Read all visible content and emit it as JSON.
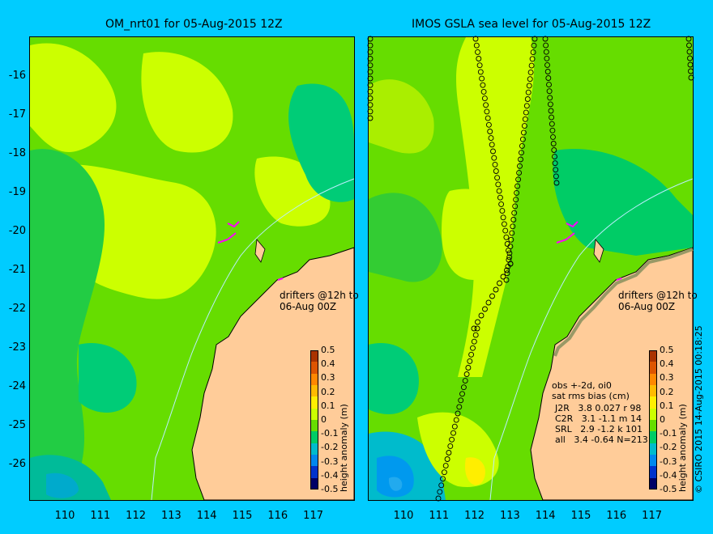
{
  "left_panel": {
    "title": "OM_nrt01 for 05-Aug-2015 12Z",
    "drifters_note": "drifters @12h to\n06-Aug 00Z"
  },
  "right_panel": {
    "title": "IMOS GSLA sea level  for 05-Aug-2015 12Z",
    "drifters_note": "drifters @12h to\n06-Aug 00Z",
    "stats_header": "obs +-2d, oi0\nsat rms bias (cm)",
    "stats_rows": [
      "J2R   3.8 0.027 r 98",
      "C2R   3.1 -1.1 m 14",
      "SRL   2.9 -1.2 k 101",
      "all   3.4 -0.64 N=213"
    ]
  },
  "y_ticks": [
    "-16",
    "-17",
    "-18",
    "-19",
    "-20",
    "-21",
    "-22",
    "-23",
    "-24",
    "-25",
    "-26"
  ],
  "x_ticks": [
    "110",
    "111",
    "112",
    "113",
    "114",
    "115",
    "116",
    "117"
  ],
  "colorbar": {
    "label": "height anomaly (m)",
    "ticks": [
      "0.5",
      "0.4",
      "0.3",
      "0.2",
      "0.1",
      "0",
      "-0.1",
      "-0.2",
      "-0.3",
      "-0.4",
      "-0.5"
    ],
    "colors": [
      "#aa3300",
      "#dd5500",
      "#ff8800",
      "#ffbb00",
      "#ffee00",
      "#ccff00",
      "#66dd00",
      "#00cc66",
      "#00bbcc",
      "#0088ee",
      "#0033cc",
      "#000066"
    ]
  },
  "credit": "© CSIRO 2015   14-Aug-2015 00:18:25",
  "colors": {
    "background": "#00ccff",
    "land": "#ffcc99",
    "drifter": "#ff00ff"
  }
}
